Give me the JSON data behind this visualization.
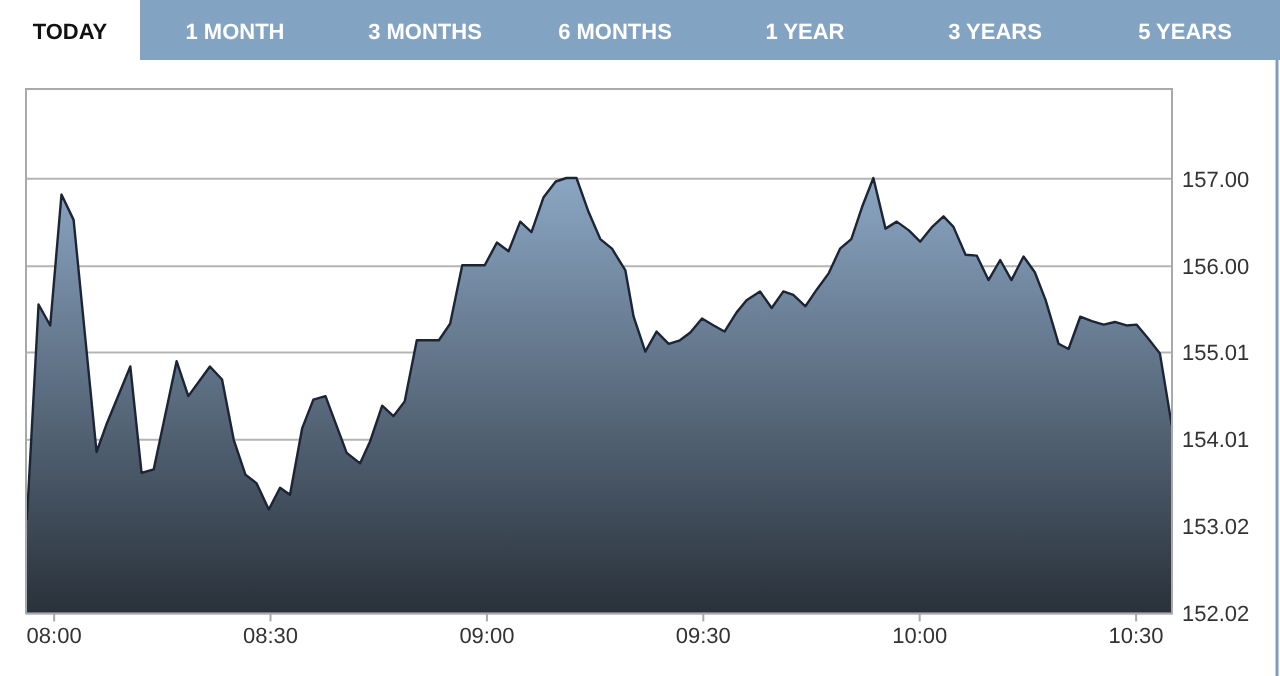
{
  "chart_data": {
    "type": "area",
    "annotations": [
      "TODAY",
      "1 MONTH",
      "3 MONTHS",
      "6 MONTHS",
      "1 YEAR",
      "3 YEARS",
      "5 YEARS"
    ],
    "x": [
      7.937,
      7.964,
      7.991,
      8.017,
      8.045,
      8.098,
      8.122,
      8.176,
      8.202,
      8.23,
      8.283,
      8.31,
      8.36,
      8.388,
      8.415,
      8.442,
      8.468,
      8.496,
      8.522,
      8.545,
      8.573,
      8.599,
      8.627,
      8.676,
      8.707,
      8.73,
      8.758,
      8.784,
      8.81,
      8.838,
      8.889,
      8.915,
      8.943,
      8.995,
      9.023,
      9.05,
      9.077,
      9.103,
      9.131,
      9.159,
      9.184,
      9.207,
      9.235,
      9.262,
      9.289,
      9.32,
      9.339,
      9.366,
      9.392,
      9.42,
      9.446,
      9.47,
      9.497,
      9.524,
      9.549,
      9.577,
      9.6,
      9.631,
      9.658,
      9.685,
      9.708,
      9.736,
      9.762,
      9.79,
      9.816,
      9.842,
      9.867,
      9.893,
      9.921,
      9.947,
      9.975,
      10.001,
      10.029,
      10.055,
      10.078,
      10.106,
      10.132,
      10.159,
      10.186,
      10.212,
      10.24,
      10.266,
      10.291,
      10.321,
      10.344,
      10.371,
      10.398,
      10.425,
      10.451,
      10.478,
      10.501,
      10.528,
      10.555,
      10.583
    ],
    "series": [
      {
        "color": "#8ba6c3",
        "values": [
          153.09,
          155.56,
          155.32,
          156.82,
          156.53,
          153.87,
          154.2,
          154.85,
          153.63,
          153.67,
          154.91,
          154.51,
          154.85,
          154.7,
          154.01,
          153.61,
          153.51,
          153.21,
          153.46,
          153.38,
          154.14,
          154.47,
          154.51,
          153.86,
          153.74,
          153.99,
          154.4,
          154.28,
          154.45,
          155.15,
          155.15,
          155.34,
          156.01,
          156.01,
          156.27,
          156.17,
          156.51,
          156.39,
          156.79,
          156.97,
          157.01,
          157.01,
          156.62,
          156.31,
          156.2,
          155.95,
          155.42,
          155.02,
          155.25,
          155.11,
          155.15,
          155.24,
          155.4,
          155.32,
          155.25,
          155.47,
          155.61,
          155.71,
          155.52,
          155.71,
          155.67,
          155.54,
          155.73,
          155.92,
          156.2,
          156.31,
          156.68,
          157.01,
          156.43,
          156.51,
          156.41,
          156.28,
          156.45,
          156.57,
          156.45,
          156.13,
          156.12,
          155.84,
          156.07,
          155.84,
          156.11,
          155.93,
          155.61,
          155.11,
          155.05,
          155.42,
          155.37,
          155.33,
          155.36,
          155.32,
          155.33,
          155.17,
          155.0,
          154.16
        ]
      }
    ],
    "xlim": [
      7.935,
      10.583
    ],
    "xticks": [
      {
        "value": 8,
        "label": "08:00"
      },
      {
        "value": 8.5,
        "label": "08:30"
      },
      {
        "value": 9,
        "label": "09:00"
      },
      {
        "value": 9.5,
        "label": "09:30"
      },
      {
        "value": 10,
        "label": "10:00"
      },
      {
        "value": 10.5,
        "label": "10:30"
      }
    ],
    "ylim": [
      152.02,
      158.03
    ],
    "yticks": [
      {
        "value": 152.02,
        "label": "152.02"
      },
      {
        "value": 153.02,
        "label": "153.02"
      },
      {
        "value": 154.01,
        "label": "154.01"
      },
      {
        "value": 155.01,
        "label": "155.01"
      },
      {
        "value": 156,
        "label": "156.00"
      },
      {
        "value": 157,
        "label": "157.00"
      }
    ],
    "grid": "y"
  }
}
